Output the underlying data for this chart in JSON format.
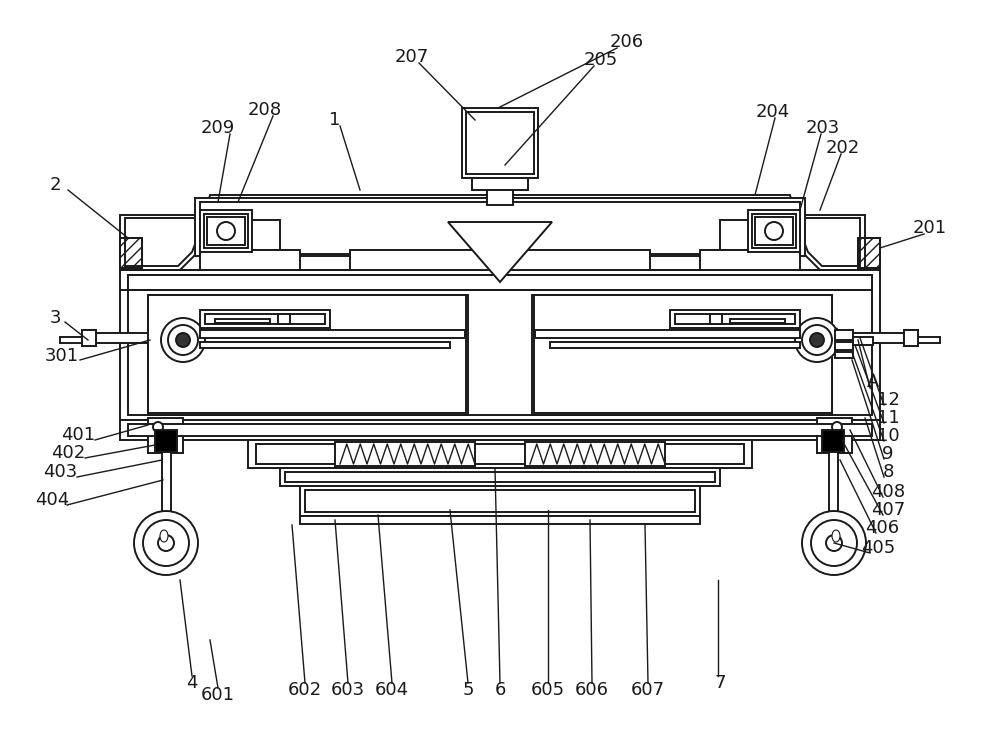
{
  "bg_color": "#ffffff",
  "line_color": "#1a1a1a",
  "lw": 1.4,
  "fs": 13
}
